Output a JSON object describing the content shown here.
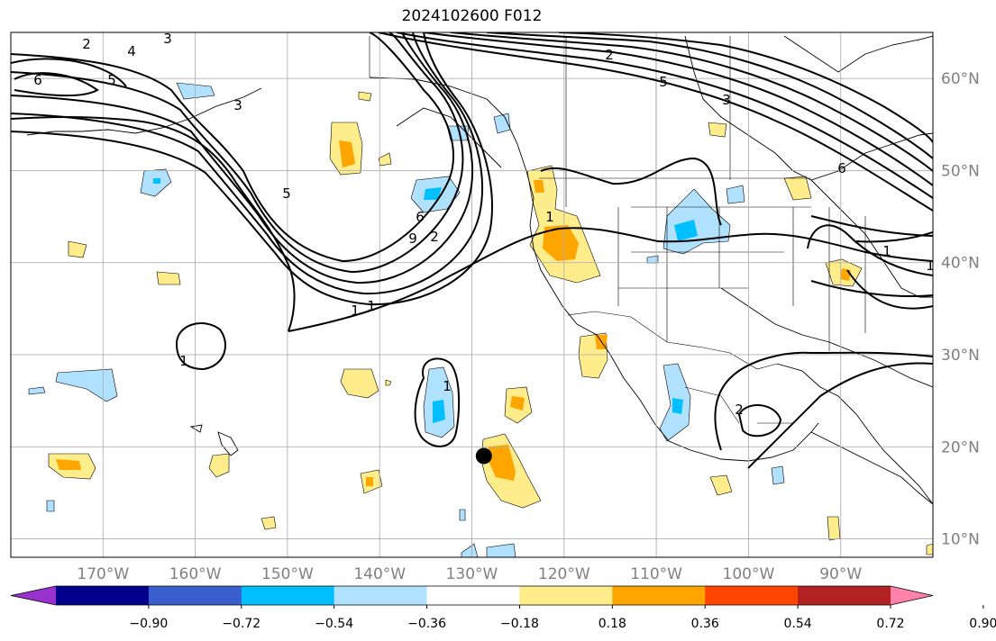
{
  "title": "2024102600 F012",
  "map": {
    "projection": "plate-carree",
    "lon_range": [
      -180,
      -80
    ],
    "lat_range": [
      8,
      65
    ],
    "grid": true,
    "lon_ticks": [
      "170°W",
      "160°W",
      "150°W",
      "140°W",
      "130°W",
      "120°W",
      "110°W",
      "100°W",
      "90°W"
    ],
    "lat_ticks": [
      "60°N",
      "50°N",
      "40°N",
      "30°N",
      "20°N",
      "10°N"
    ],
    "marker": {
      "lon": -128.7,
      "lat": 19.0,
      "color": "#000000"
    }
  },
  "colorbar": {
    "ticks": [
      "−0.90",
      "−0.72",
      "−0.54",
      "−0.36",
      "−0.18",
      "0.18",
      "0.36",
      "0.54",
      "0.72",
      "0.90"
    ],
    "colors": [
      "#9932cc",
      "#00008b",
      "#3a5fcd",
      "#00bfff",
      "#b0e2ff",
      "#ffffff",
      "#ffec8b",
      "#ffa500",
      "#ff4500",
      "#b22222",
      "#ff82ab"
    ]
  },
  "contour_labels": [
    "6",
    "5",
    "4",
    "3",
    "2",
    "1",
    "5",
    "6",
    "9",
    "2",
    "3",
    "1",
    "1",
    "1",
    "2",
    "6",
    "5",
    "2",
    "3",
    "1",
    "1",
    "1"
  ]
}
